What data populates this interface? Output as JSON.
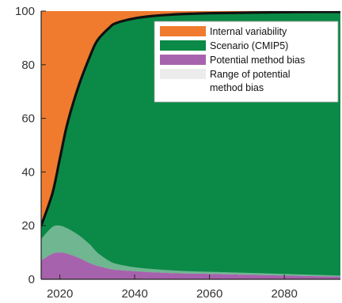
{
  "chart_data": {
    "type": "area",
    "title": "",
    "xlabel": "",
    "ylabel": "",
    "xlim": [
      2015,
      2095
    ],
    "ylim": [
      0,
      100
    ],
    "x_ticks": [
      "2020",
      "2040",
      "2060",
      "2080"
    ],
    "y_ticks": [
      "0",
      "20",
      "40",
      "60",
      "80",
      "100"
    ],
    "grid": false,
    "legend_position": "top-right",
    "x": [
      2015,
      2018,
      2020,
      2022,
      2025,
      2028,
      2030,
      2033,
      2035,
      2040,
      2045,
      2050,
      2055,
      2060,
      2070,
      2080,
      2090,
      2095
    ],
    "series": [
      {
        "name": "Internal variability",
        "color": "#f07b2e",
        "lower": [
          20,
          32,
          45,
          58,
          72,
          83,
          89,
          93.5,
          95.5,
          97.3,
          98.2,
          98.7,
          99.0,
          99.2,
          99.4,
          99.6,
          99.7,
          99.7
        ],
        "upper": [
          100,
          100,
          100,
          100,
          100,
          100,
          100,
          100,
          100,
          100,
          100,
          100,
          100,
          100,
          100,
          100,
          100,
          100
        ]
      },
      {
        "name": "Scenario (CMIP5)",
        "color": "#0b8a47",
        "lower": [
          7,
          9.5,
          10,
          9.5,
          8,
          6,
          5,
          4,
          3.5,
          3,
          2.6,
          2.3,
          2.1,
          2,
          1.7,
          1.4,
          1.1,
          1
        ],
        "upper": [
          20,
          32,
          45,
          58,
          72,
          83,
          89,
          93.5,
          95.5,
          97.3,
          98.2,
          98.7,
          99.0,
          99.2,
          99.4,
          99.6,
          99.7,
          99.7
        ]
      },
      {
        "name": "Potential method bias",
        "color": "#a762ad",
        "lower": [
          0,
          0,
          0,
          0,
          0,
          0,
          0,
          0,
          0,
          0,
          0,
          0,
          0,
          0,
          0,
          0,
          0,
          0
        ],
        "upper": [
          7,
          9.5,
          10,
          9.5,
          8,
          6,
          5,
          4,
          3.5,
          3,
          2.6,
          2.3,
          2.1,
          2,
          1.7,
          1.4,
          1.1,
          1
        ]
      },
      {
        "name": "Range of potential method bias",
        "color": "#ececec",
        "lower": [
          7,
          9.5,
          10,
          9.5,
          8,
          6,
          5,
          4,
          3.5,
          3,
          2.6,
          2.3,
          2.1,
          2,
          1.7,
          1.4,
          1.1,
          1
        ],
        "upper": [
          15,
          19.5,
          20,
          19,
          16.5,
          13,
          10,
          7,
          5.8,
          4.5,
          3.8,
          3.3,
          3,
          2.8,
          2.4,
          2,
          1.6,
          1.4
        ]
      }
    ],
    "legend_labels": [
      [
        "Internal variability"
      ],
      [
        "Scenario (CMIP5)"
      ],
      [
        "Potential method bias"
      ],
      [
        "Range of potential",
        "method bias"
      ]
    ]
  }
}
